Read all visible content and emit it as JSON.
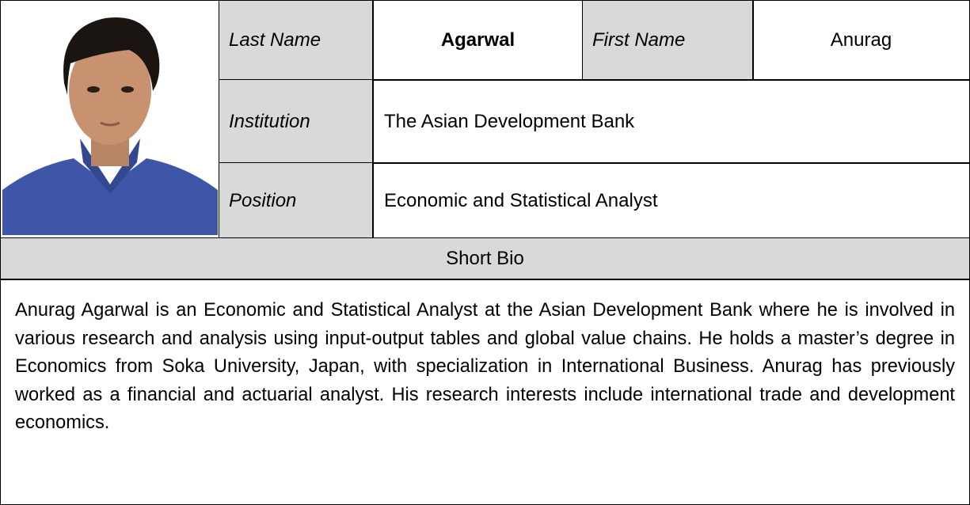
{
  "profile": {
    "last_name_label": "Last Name",
    "last_name": "Agarwal",
    "first_name_label": "First Name",
    "first_name": "Anurag",
    "institution_label": "Institution",
    "institution": "The Asian Development Bank",
    "position_label": "Position",
    "position": "Economic and Statistical Analyst",
    "bio_heading": "Short Bio",
    "bio": "Anurag Agarwal is an Economic and Statistical Analyst at the Asian Development Bank where he is involved in various research and analysis using input-output tables and global value chains. He holds a master’s degree in Economics from Soka University, Japan, with specialization in International Business. Anurag has previously worked as a financial and actuarial analyst. His research interests include international trade and development economics."
  }
}
